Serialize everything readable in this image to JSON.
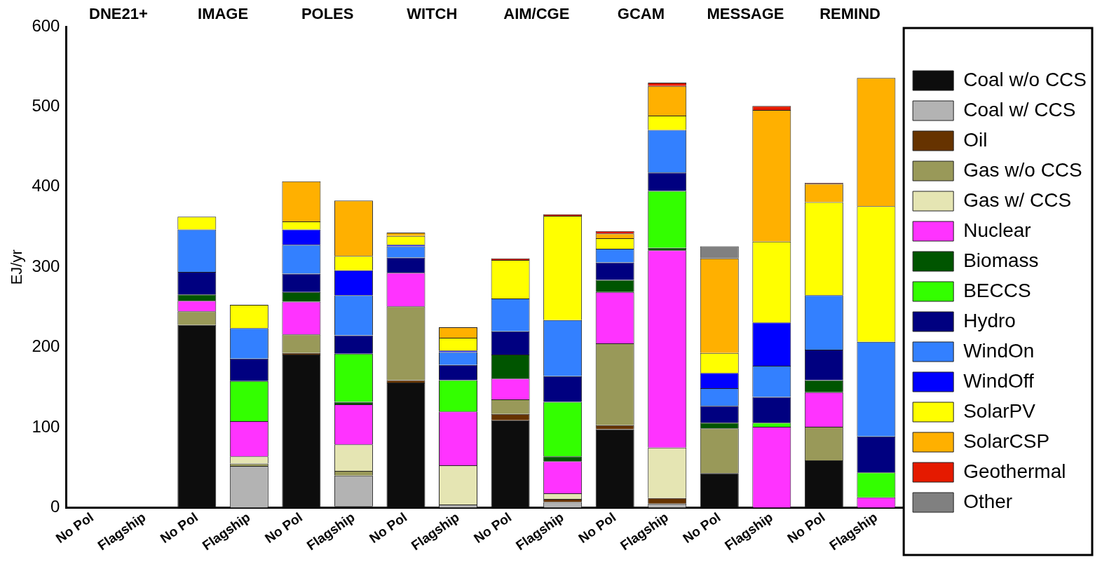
{
  "chart_data": {
    "type": "bar",
    "stacked": true,
    "ylabel": "EJ/yr",
    "ylim": [
      0,
      600
    ],
    "yticks": [
      0,
      100,
      200,
      300,
      400,
      500,
      600
    ],
    "grid": false,
    "legend": "right",
    "categories": [
      "No Pol",
      "Flagship",
      "No Pol",
      "Flagship",
      "No Pol",
      "Flagship",
      "No Pol",
      "Flagship",
      "No Pol",
      "Flagship",
      "No Pol",
      "Flagship",
      "No Pol",
      "Flagship",
      "No Pol",
      "Flagship"
    ],
    "annotations": [
      "DNE21+",
      "IMAGE",
      "POLES",
      "WITCH",
      "AIM/CGE",
      "GCAM",
      "MESSAGE",
      "REMIND"
    ],
    "series": [
      {
        "name": "Coal w/o CCS",
        "color": "#0d0d0d",
        "values": [
          null,
          null,
          228,
          0,
          191,
          2,
          156,
          0,
          109,
          0,
          98,
          0,
          43,
          0,
          59,
          0
        ]
      },
      {
        "name": "Coal w/ CCS",
        "color": "#b3b3b3",
        "values": [
          null,
          null,
          0,
          52,
          0,
          38,
          0,
          4,
          0,
          7,
          0,
          5,
          0,
          0,
          0,
          0
        ]
      },
      {
        "name": "Oil",
        "color": "#663300",
        "values": [
          null,
          null,
          0,
          0,
          2,
          0,
          3,
          0,
          8,
          4,
          5,
          7,
          0,
          0,
          0,
          0
        ]
      },
      {
        "name": "Gas w/o CCS",
        "color": "#999959",
        "values": [
          null,
          null,
          17,
          3,
          23,
          6,
          92,
          0,
          18,
          0,
          102,
          0,
          56,
          0,
          42,
          0
        ]
      },
      {
        "name": "Gas w/ CCS",
        "color": "#e5e5b3",
        "values": [
          null,
          null,
          0,
          9,
          0,
          33,
          0,
          49,
          0,
          7,
          0,
          63,
          0,
          0,
          0,
          0
        ]
      },
      {
        "name": "Nuclear",
        "color": "#ff33ff",
        "values": [
          null,
          null,
          13,
          44,
          41,
          50,
          42,
          67,
          26,
          40,
          64,
          246,
          0,
          101,
          43,
          13
        ]
      },
      {
        "name": "Biomass",
        "color": "#005500",
        "values": [
          null,
          null,
          8,
          0,
          12,
          3,
          0,
          0,
          30,
          6,
          15,
          3,
          7,
          0,
          15,
          0
        ]
      },
      {
        "name": "BECCS",
        "color": "#33ff00",
        "values": [
          null,
          null,
          0,
          50,
          0,
          60,
          0,
          39,
          0,
          68,
          0,
          71,
          0,
          5,
          0,
          31
        ]
      },
      {
        "name": "Hydro",
        "color": "#000080",
        "values": [
          null,
          null,
          28,
          28,
          23,
          23,
          19,
          19,
          29,
          32,
          22,
          23,
          21,
          32,
          38,
          45
        ]
      },
      {
        "name": "WindOn",
        "color": "#3380ff",
        "values": [
          null,
          null,
          53,
          38,
          36,
          50,
          14,
          16,
          41,
          70,
          17,
          53,
          22,
          39,
          68,
          118
        ]
      },
      {
        "name": "WindOff",
        "color": "#0000ff",
        "values": [
          null,
          null,
          0,
          0,
          19,
          31,
          2,
          2,
          0,
          0,
          0,
          0,
          19,
          54,
          0,
          0
        ]
      },
      {
        "name": "SolarPV",
        "color": "#ffff00",
        "values": [
          null,
          null,
          16,
          29,
          10,
          18,
          11,
          16,
          48,
          130,
          13,
          18,
          25,
          101,
          116,
          169
        ]
      },
      {
        "name": "SolarCSP",
        "color": "#ffb000",
        "values": [
          null,
          null,
          0,
          0,
          50,
          69,
          4,
          13,
          0,
          0,
          6,
          37,
          118,
          164,
          23,
          160
        ]
      },
      {
        "name": "Geothermal",
        "color": "#e51a00",
        "values": [
          null,
          null,
          0,
          0,
          null,
          0,
          0,
          0,
          2,
          2,
          3,
          4,
          0,
          5,
          1,
          0
        ]
      },
      {
        "name": "Other",
        "color": "#808080",
        "values": [
          null,
          null,
          0,
          0,
          0,
          0,
          0,
          0,
          0,
          0,
          0,
          0,
          15,
          0,
          0,
          0
        ]
      }
    ]
  }
}
